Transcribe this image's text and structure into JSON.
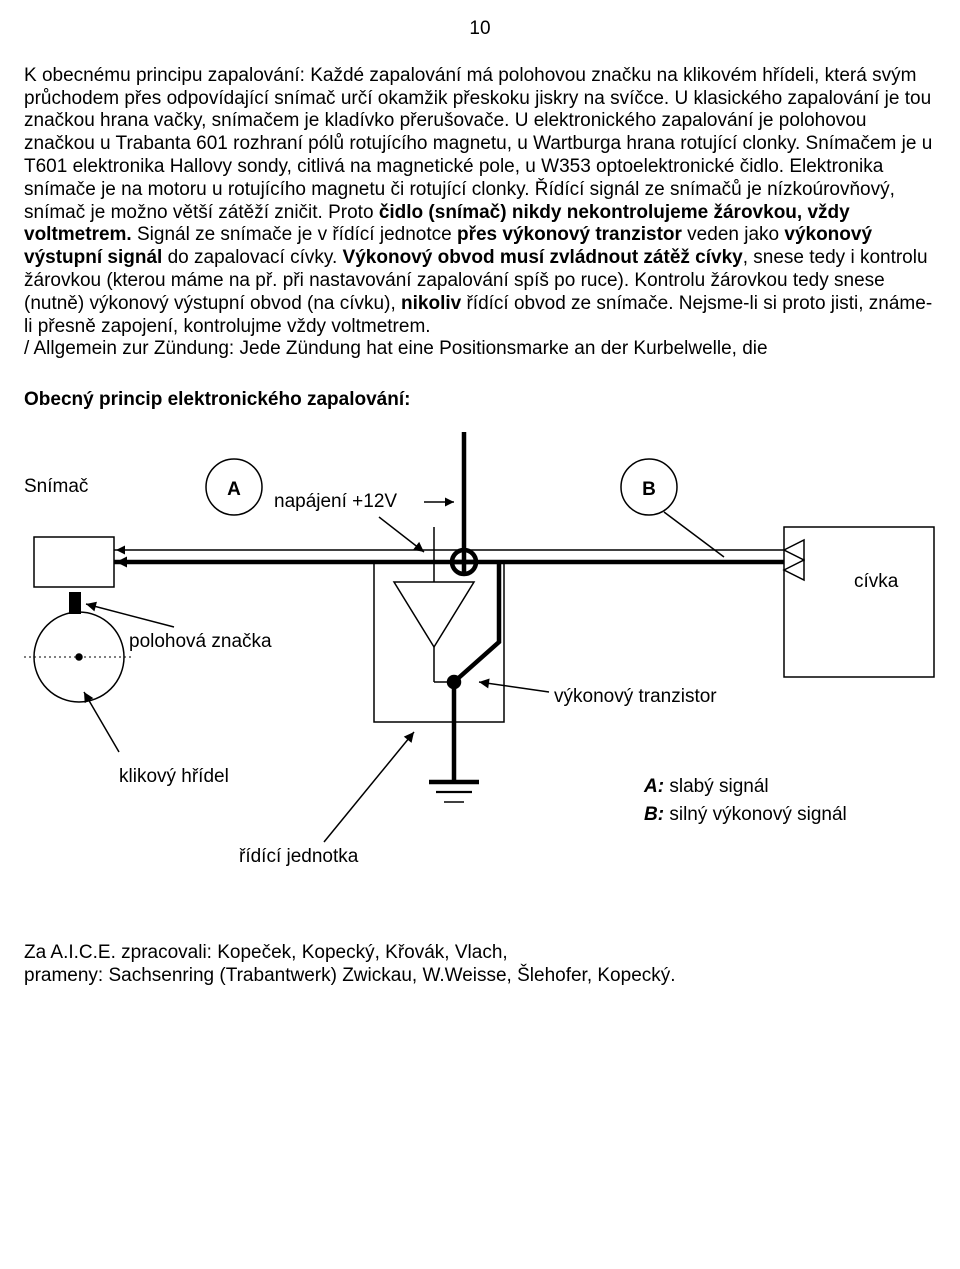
{
  "page_number": "10",
  "paragraph": "K obecnému principu zapalování: Každé zapalování má polohovou značku na klikovém hřídeli, která svým průchodem přes odpovídající snímač určí okamžik přeskoku jiskry na svíčce. U klasického zapalování je tou značkou hrana vačky, snímačem je kladívko přerušovače. U elektronického zapalování je polohovou značkou u Trabanta 601 rozhraní pólů rotujícího magnetu, u Wartburga hrana rotující clonky. Snímačem je u T601 elektronika Hallovy sondy, citlivá na magnetické pole, u W353 optoelektronické čidlo. Elektronika snímače je na motoru u rotujícího magnetu či rotující clonky. Řídící signál ze snímačů je nízkoúrovňový, snímač je možno větší zátěží zničit. Proto <b>čidlo (snímač) nikdy nekontrolujeme žárovkou, vždy voltmetrem.</b> Signál ze snímače je v řídící jednotce <b>přes výkonový tranzistor</b> veden jako <b>výkonový výstupní signál</b> do zapalovací cívky. <b>Výkonový obvod musí zvládnout zátěž cívky</b>, snese tedy i kontrolu žárovkou (kterou máme na př. při nastavování zapalování spíš po ruce). Kontrolu žárovkou tedy snese (nutně) výkonový výstupní obvod (na cívku), <b>nikoliv</b> řídící obvod ze snímače. Nejsme-li si proto jisti, známe-li přesně zapojení, kontrolujme vždy voltmetrem.<br>/ Allgemein zur Zündung: Jede Zündung hat eine Positionsmarke an der Kurbelwelle, die",
  "heading": "Obecný princip elektronického zapalování:",
  "diagram": {
    "labels": {
      "snimac": "Snímač",
      "a": "A",
      "b": "B",
      "napajeni": "napájení +12V",
      "civka": "cívka",
      "polohova_znacka": "polohová značka",
      "vykonovy_tranzistor": "výkonový tranzistor",
      "klikovy_hridel": "klikový hřídel",
      "ridici_jednotka": "řídící jednotka",
      "a_desc_prefix": "A:",
      "a_desc": " slabý signál",
      "b_desc_prefix": "B:",
      "b_desc": " silný výkonový signál"
    },
    "colors": {
      "stroke_thin": "#000000",
      "stroke_thick": "#000000",
      "bg": "#ffffff"
    },
    "strokes": {
      "thin": 1.5,
      "medium": 2.2,
      "thick": 4.5
    }
  },
  "footer_line1": "Za A.I.C.E. zpracovali: Kopeček, Kopecký, Křovák, Vlach,",
  "footer_line2": "prameny: Sachsenring (Trabantwerk) Zwickau, W.Weisse, Šlehofer, Kopecký."
}
